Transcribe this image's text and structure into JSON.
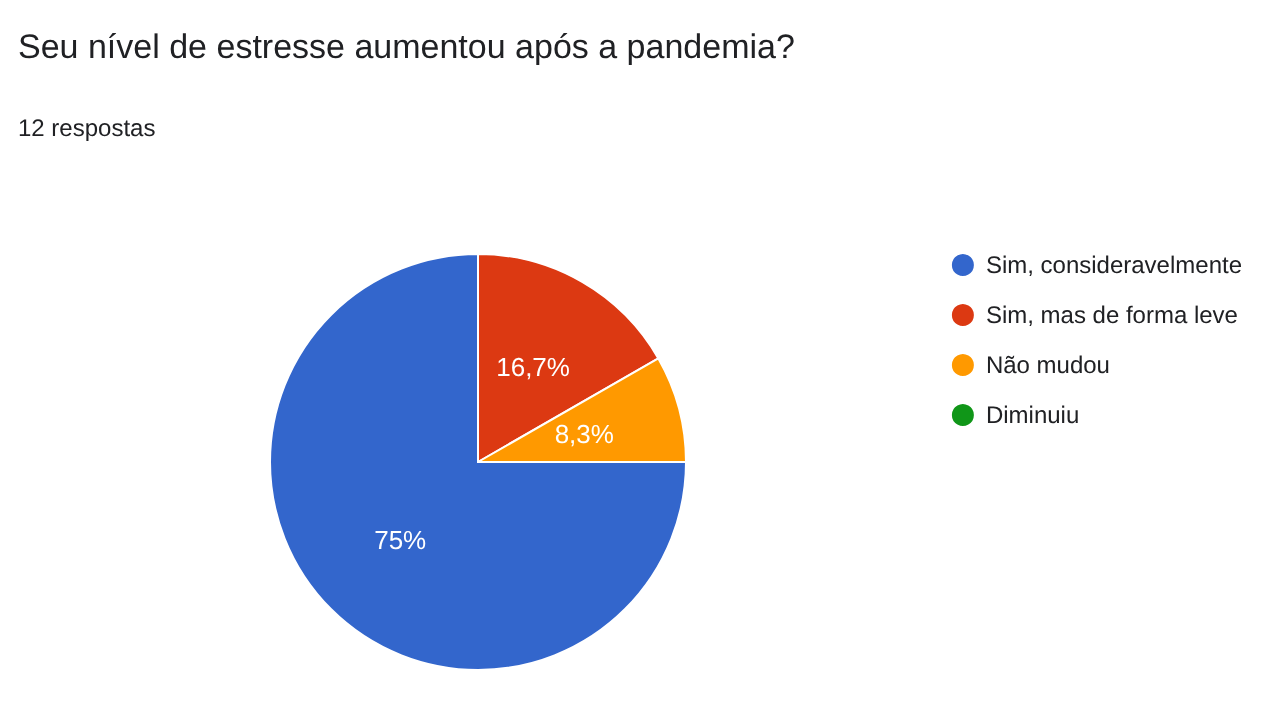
{
  "chart_data": {
    "type": "pie",
    "title": "Seu nível de estresse aumentou após a pandemia?",
    "subtitle": "12 respostas",
    "categories": [
      "Sim, consideravelmente",
      "Sim, mas de forma leve",
      "Não mudou",
      "Diminuiu"
    ],
    "values": [
      75,
      16.7,
      8.3,
      0
    ],
    "colors": [
      "#3366cc",
      "#dc3912",
      "#ff9900",
      "#109618"
    ],
    "value_labels": [
      "75%",
      "16,7%",
      "8,3%",
      null
    ],
    "legend": "right"
  }
}
